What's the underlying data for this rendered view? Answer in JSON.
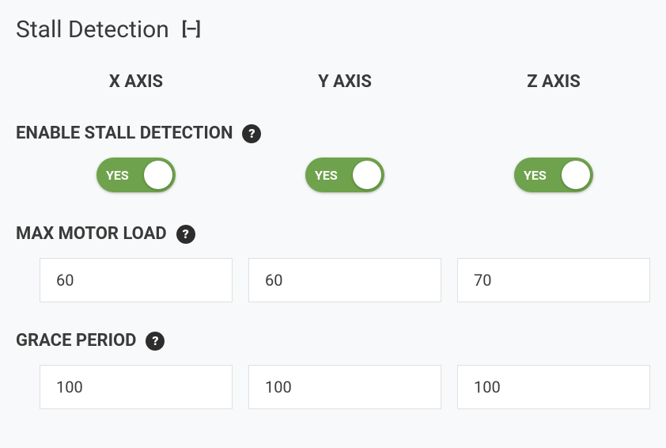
{
  "section": {
    "title": "Stall Detection"
  },
  "axes": {
    "x": "X AXIS",
    "y": "Y AXIS",
    "z": "Z AXIS"
  },
  "rows": {
    "enable": {
      "label": "ENABLE STALL DETECTION",
      "toggle_on_label": "YES",
      "toggle_color": "#6fa24c",
      "values": {
        "x": true,
        "y": true,
        "z": true
      }
    },
    "max_load": {
      "label": "MAX MOTOR LOAD",
      "values": {
        "x": "60",
        "y": "60",
        "z": "70"
      }
    },
    "grace": {
      "label": "GRACE PERIOD",
      "values": {
        "x": "100",
        "y": "100",
        "z": "100"
      }
    }
  },
  "styling": {
    "background": "#f8f9fa",
    "text_color": "#3a3a3a",
    "input_bg": "#ffffff",
    "input_border": "#e0e0e0",
    "help_icon_bg": "#2d2d2d",
    "title_fontsize": 30,
    "label_fontsize": 22,
    "axis_header_fontsize": 22,
    "input_fontsize": 20
  }
}
